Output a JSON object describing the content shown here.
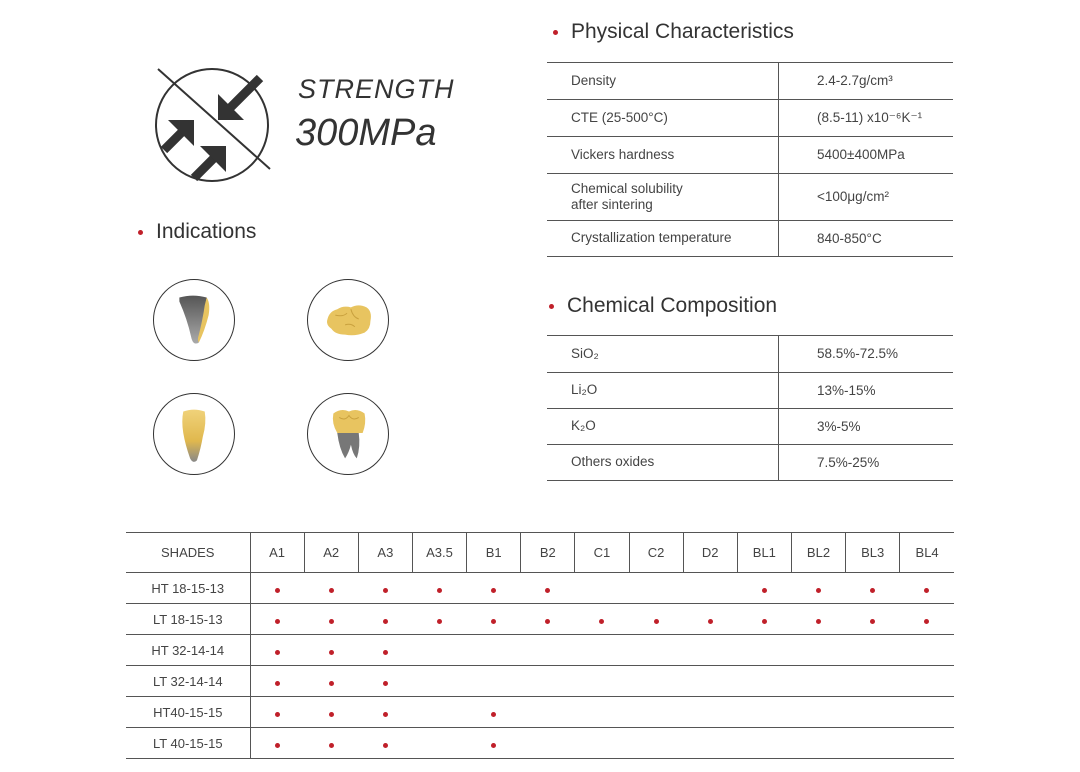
{
  "strength": {
    "label": "STRENGTH",
    "value": "300MPa"
  },
  "indications": {
    "title": "Indications",
    "icons": [
      "veneer-icon",
      "inlay-icon",
      "anterior-crown-icon",
      "posterior-crown-icon"
    ]
  },
  "physical": {
    "title": "Physical Characteristics",
    "rows": [
      {
        "key": "Density",
        "value": "2.4-2.7g/cm³"
      },
      {
        "key": "CTE (25-500°C)",
        "value": "(8.5-11) x10⁻⁶K⁻¹"
      },
      {
        "key": "Vickers hardness",
        "value": "5400±400MPa"
      },
      {
        "key": "Chemical solubility",
        "key2": "after sintering",
        "value": "<100μg/cm²"
      },
      {
        "key": "Crystallization temperature",
        "value": "840-850°C"
      }
    ]
  },
  "chemical": {
    "title": "Chemical Composition",
    "rows": [
      {
        "key": "SiO₂",
        "value": "58.5%-72.5%"
      },
      {
        "key": "Li₂O",
        "value": "13%-15%"
      },
      {
        "key": "K₂O",
        "value": "3%-5%"
      },
      {
        "key": "Others oxides",
        "value": "7.5%-25%"
      }
    ]
  },
  "shades": {
    "header": "SHADES",
    "columns": [
      "A1",
      "A2",
      "A3",
      "A3.5",
      "B1",
      "B2",
      "C1",
      "C2",
      "D2",
      "BL1",
      "BL2",
      "BL3",
      "BL4"
    ],
    "rows": [
      {
        "label": "HT 18-15-13",
        "avail": [
          1,
          1,
          1,
          1,
          1,
          1,
          0,
          0,
          0,
          1,
          1,
          1,
          1
        ]
      },
      {
        "label": "LT 18-15-13",
        "avail": [
          1,
          1,
          1,
          1,
          1,
          1,
          1,
          1,
          1,
          1,
          1,
          1,
          1
        ]
      },
      {
        "label": "HT 32-14-14",
        "avail": [
          1,
          1,
          1,
          0,
          0,
          0,
          0,
          0,
          0,
          0,
          0,
          0,
          0
        ]
      },
      {
        "label": "LT 32-14-14",
        "avail": [
          1,
          1,
          1,
          0,
          0,
          0,
          0,
          0,
          0,
          0,
          0,
          0,
          0
        ]
      },
      {
        "label": "HT40-15-15",
        "avail": [
          1,
          1,
          1,
          0,
          1,
          0,
          0,
          0,
          0,
          0,
          0,
          0,
          0
        ]
      },
      {
        "label": "LT 40-15-15",
        "avail": [
          1,
          1,
          1,
          0,
          1,
          0,
          0,
          0,
          0,
          0,
          0,
          0,
          0
        ]
      }
    ]
  },
  "colors": {
    "accent": "#c0202a",
    "gold": "#e8c460",
    "text": "#333333"
  }
}
